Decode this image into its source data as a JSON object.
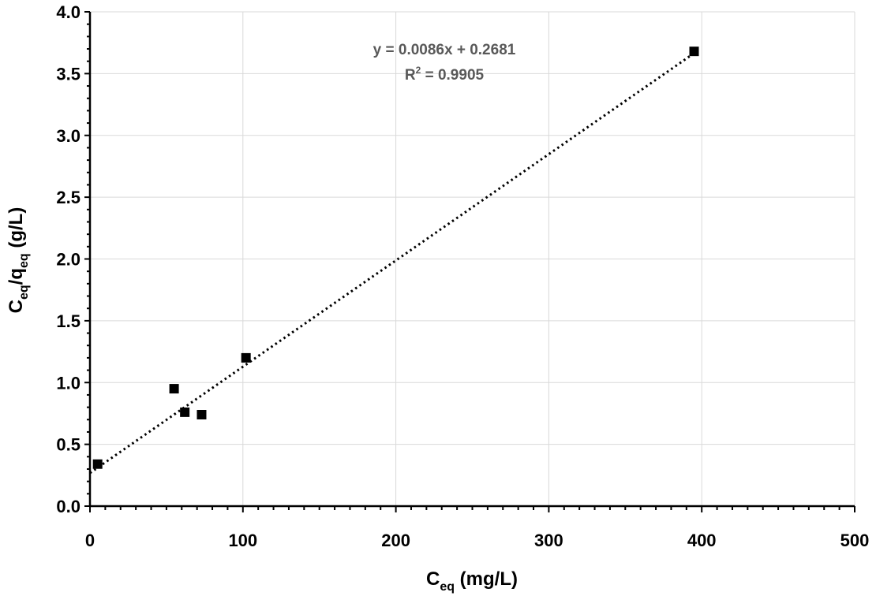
{
  "chart_data": {
    "type": "scatter",
    "series": [
      {
        "x": [
          5,
          55,
          62,
          73,
          102,
          395
        ],
        "y": [
          0.34,
          0.95,
          0.76,
          0.74,
          1.2,
          3.68
        ],
        "marker": "square",
        "color": "#000000"
      }
    ],
    "trendline": {
      "type": "linear",
      "slope": 0.0086,
      "intercept": 0.2681,
      "x_range": [
        0,
        395
      ],
      "style": "dotted",
      "color": "#000000",
      "equation": "y = 0.0086x + 0.2681",
      "r2_label": "R",
      "r2_sup": "2",
      "r2_value": " = 0.9905"
    },
    "xlabel": {
      "main": "C",
      "sub": "eq",
      "rest": " (mg/L)"
    },
    "ylabel": {
      "c": "C",
      "c_sub": "eq",
      "slash_q": "/q",
      "q_sub": "eq",
      "rest": " (g/L)"
    },
    "xlim": [
      0,
      500
    ],
    "ylim": [
      0,
      4.0
    ],
    "x_ticks": [
      "0",
      "100",
      "200",
      "300",
      "400",
      "500"
    ],
    "y_ticks": [
      "0.0",
      "0.5",
      "1.0",
      "1.5",
      "2.0",
      "2.5",
      "3.0",
      "3.5",
      "4.0"
    ],
    "grid": true,
    "legend": "none"
  }
}
